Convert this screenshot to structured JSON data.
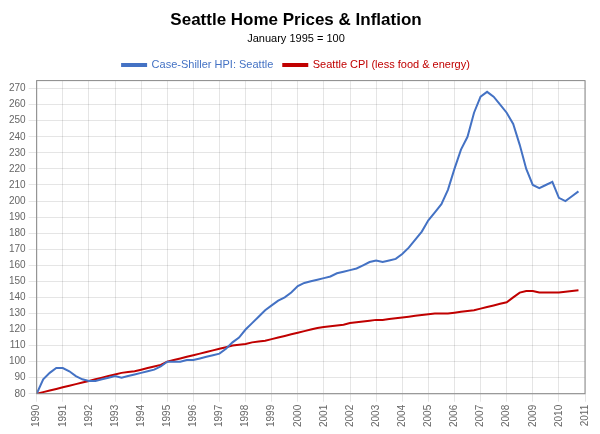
{
  "chart_data": {
    "type": "line",
    "title": "Seattle Home Prices & Inflation",
    "subtitle": "January 1995 = 100",
    "x": [
      1990.0,
      1990.25,
      1990.5,
      1990.75,
      1991.0,
      1991.25,
      1991.5,
      1991.75,
      1992.0,
      1992.25,
      1992.5,
      1992.75,
      1993.0,
      1993.25,
      1993.5,
      1993.75,
      1994.0,
      1994.25,
      1994.5,
      1994.75,
      1995.0,
      1995.25,
      1995.5,
      1995.75,
      1996.0,
      1996.25,
      1996.5,
      1996.75,
      1997.0,
      1997.25,
      1997.5,
      1997.75,
      1998.0,
      1998.25,
      1998.5,
      1998.75,
      1999.0,
      1999.25,
      1999.5,
      1999.75,
      2000.0,
      2000.25,
      2000.5,
      2000.75,
      2001.0,
      2001.25,
      2001.5,
      2001.75,
      2002.0,
      2002.25,
      2002.5,
      2002.75,
      2003.0,
      2003.25,
      2003.5,
      2003.75,
      2004.0,
      2004.25,
      2004.5,
      2004.75,
      2005.0,
      2005.25,
      2005.5,
      2005.75,
      2006.0,
      2006.25,
      2006.5,
      2006.75,
      2007.0,
      2007.25,
      2007.5,
      2007.75,
      2008.0,
      2008.25,
      2008.5,
      2008.75,
      2009.0,
      2009.25,
      2009.5,
      2009.75,
      2010.0,
      2010.25,
      2010.5,
      2010.75
    ],
    "series": [
      {
        "name": "Case-Shiller HPI: Seattle",
        "color": "#4472C4",
        "values": [
          80,
          89,
          93,
          96,
          96,
          94,
          91,
          89,
          88,
          88,
          89,
          90,
          91,
          90,
          91,
          92,
          93,
          94,
          95,
          97,
          100,
          100,
          100,
          101,
          101,
          102,
          103,
          104,
          105,
          108,
          112,
          115,
          120,
          124,
          128,
          132,
          135,
          138,
          140,
          143,
          147,
          149,
          150,
          151,
          152,
          153,
          155,
          156,
          157,
          158,
          160,
          162,
          163,
          162,
          163,
          164,
          167,
          171,
          176,
          181,
          188,
          193,
          198,
          207,
          220,
          232,
          240,
          255,
          265,
          268,
          265,
          260,
          255,
          248,
          235,
          220,
          210,
          208,
          210,
          212,
          202,
          200,
          203,
          206
        ]
      },
      {
        "name": "Seattle CPI (less food & energy)",
        "color": "#C00000",
        "values": [
          80,
          81,
          82,
          83,
          84,
          85,
          86,
          87,
          88,
          89,
          90,
          91,
          92,
          93,
          93.5,
          94,
          95,
          96,
          97,
          98,
          100,
          101,
          102,
          103,
          104,
          105,
          106,
          107,
          108,
          109,
          110,
          110.5,
          111,
          112,
          112.5,
          113,
          114,
          115,
          116,
          117,
          118,
          119,
          120,
          121,
          121.5,
          122,
          122.5,
          123,
          124,
          124.5,
          125,
          125.5,
          126,
          126,
          126.5,
          127,
          127.5,
          128,
          128.5,
          129,
          129.5,
          130,
          130,
          130,
          130.5,
          131,
          131.5,
          132,
          133,
          134,
          135,
          136,
          137,
          140,
          143,
          144,
          144,
          143,
          143,
          143,
          143,
          143.5,
          144,
          144.5
        ]
      }
    ],
    "xlim": [
      1990.0,
      2011.0
    ],
    "xticks": [
      1990,
      1991,
      1992,
      1993,
      1994,
      1995,
      1996,
      1997,
      1998,
      1999,
      2000,
      2001,
      2002,
      2003,
      2004,
      2005,
      2006,
      2007,
      2008,
      2009,
      2010,
      2011
    ],
    "ylim": [
      80,
      275
    ],
    "yticks": [
      80,
      90,
      100,
      110,
      120,
      130,
      140,
      150,
      160,
      170,
      180,
      190,
      200,
      210,
      220,
      230,
      240,
      250,
      260,
      270
    ],
    "grid": true,
    "legend": "top"
  }
}
